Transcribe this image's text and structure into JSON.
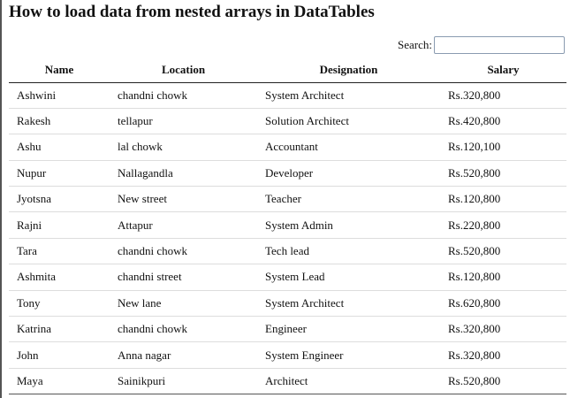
{
  "page": {
    "title": "How to load data from nested arrays in DataTables"
  },
  "search": {
    "label": "Search:",
    "value": "",
    "placeholder": ""
  },
  "table": {
    "columns": [
      "Name",
      "Location",
      "Designation",
      "Salary"
    ],
    "rows": [
      [
        "Ashwini",
        "chandni chowk",
        "System Architect",
        "Rs.320,800"
      ],
      [
        "Rakesh",
        "tellapur",
        "Solution Architect",
        "Rs.420,800"
      ],
      [
        "Ashu",
        "lal chowk",
        "Accountant",
        "Rs.120,100"
      ],
      [
        "Nupur",
        "Nallagandla",
        "Developer",
        "Rs.520,800"
      ],
      [
        "Jyotsna",
        "New street",
        "Teacher",
        "Rs.120,800"
      ],
      [
        "Rajni",
        "Attapur",
        "System Admin",
        "Rs.220,800"
      ],
      [
        "Tara",
        "chandni chowk",
        "Tech lead",
        "Rs.520,800"
      ],
      [
        "Ashmita",
        "chandni street",
        "System Lead",
        "Rs.120,800"
      ],
      [
        "Tony",
        "New lane",
        "System Architect",
        "Rs.620,800"
      ],
      [
        "Katrina",
        "chandni chowk",
        "Engineer",
        "Rs.320,800"
      ],
      [
        "John",
        "Anna nagar",
        "System Engineer",
        "Rs.320,800"
      ],
      [
        "Maya",
        "Sainikpuri",
        "Architect",
        "Rs.520,800"
      ]
    ]
  }
}
